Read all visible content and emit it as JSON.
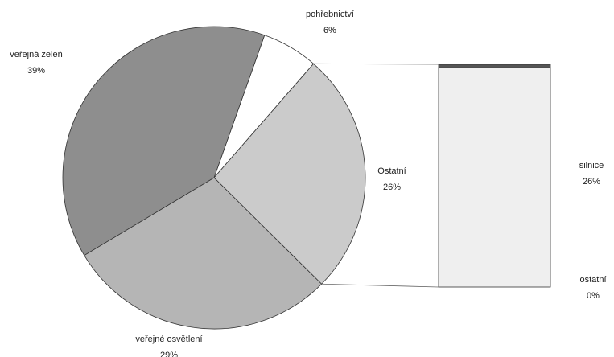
{
  "chart_data": {
    "type": "pie-of-bar",
    "pie": {
      "categories": [
        "pohřebnictví",
        "Ostatní",
        "veřejné osvětlení",
        "veřejná zeleň"
      ],
      "values": [
        6,
        26,
        29,
        39
      ],
      "value_labels": [
        "6%",
        "26%",
        "29%",
        "39%"
      ],
      "colors": [
        "#ffffff",
        "#cbcbcb",
        "#b5b5b5",
        "#8e8e8e"
      ]
    },
    "bar": {
      "categories": [
        "silnice",
        "ostatní"
      ],
      "values": [
        26,
        0.4
      ],
      "value_labels": [
        "26%",
        "0%"
      ],
      "colors": [
        "#efefef",
        "#555555"
      ]
    }
  }
}
